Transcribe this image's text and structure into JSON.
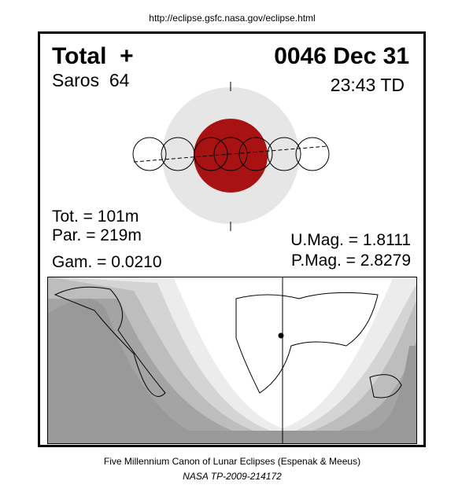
{
  "header": {
    "url": "http://eclipse.gsfc.nasa.gov/eclipse.html"
  },
  "eclipse": {
    "type": "Total  +",
    "date": "0046 Dec 31",
    "saros": "Saros  64",
    "time": "23:43 TD",
    "total_duration": "Tot. = 101m",
    "partial_duration": "Par. = 219m",
    "gamma": "Gam. = 0.0210",
    "umbral_magnitude": "U.Mag. = 1.8111",
    "penumbral_magnitude": "P.Mag. = 2.8279"
  },
  "footer": {
    "canon": "Five Millennium Canon of Lunar Eclipses (Espenak & Meeus)",
    "reference": "NASA TP-2009-214172"
  }
}
